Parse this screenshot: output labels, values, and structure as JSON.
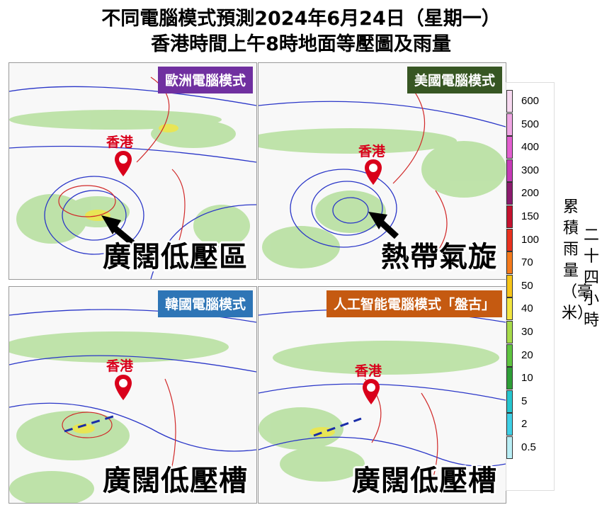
{
  "title_line1": "不同電腦模式預測2024年6月24日（星期一）",
  "title_line2": "香港時間上午8時地面等壓圖及雨量",
  "hk_label": "香港",
  "panels": [
    {
      "model": "歐洲電腦模式",
      "feature": "廣闊低壓區",
      "tag_color": "#7030a0"
    },
    {
      "model": "美國電腦模式",
      "feature": "熱帶氣旋",
      "tag_color": "#375623"
    },
    {
      "model": "韓國電腦模式",
      "feature": "廣闊低壓槽",
      "tag_color": "#2e75b6"
    },
    {
      "model": "人工智能電腦模式「盤古」",
      "feature": "廣闊低壓槽",
      "tag_color": "#c55a11"
    }
  ],
  "colorbar": {
    "levels": [
      "600",
      "500",
      "400",
      "300",
      "200",
      "150",
      "100",
      "70",
      "50",
      "40",
      "30",
      "20",
      "10",
      "5",
      "2",
      "0.5"
    ],
    "colors": [
      "#f7d9f0",
      "#f0a6e4",
      "#e35fd0",
      "#c63ab6",
      "#8c1a6e",
      "#c4122f",
      "#e8321f",
      "#f47a1c",
      "#f7c519",
      "#f2e640",
      "#a7db4a",
      "#5fc440",
      "#2e9e37",
      "#26c6cf",
      "#3fd0e6",
      "#b9eef5"
    ],
    "unit_col1": "累積雨量（毫米）",
    "unit_col2": "二十四小時"
  }
}
